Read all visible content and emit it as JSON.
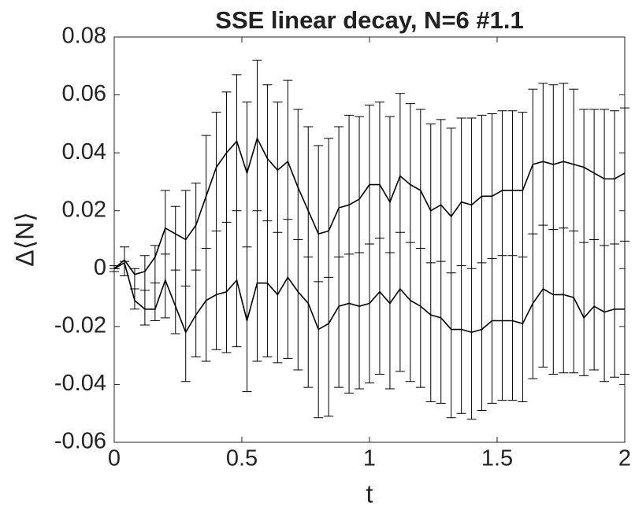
{
  "chart_data": {
    "type": "errorbar",
    "title": "SSE linear decay, N=6 #1.1",
    "xlabel": "t",
    "ylabel": "Δ⟨N⟩",
    "x": [
      0,
      0.04,
      0.08,
      0.12,
      0.16,
      0.2,
      0.24,
      0.28,
      0.32,
      0.36,
      0.4,
      0.44,
      0.48,
      0.52,
      0.56,
      0.6,
      0.64,
      0.68,
      0.72,
      0.76,
      0.8,
      0.84,
      0.88,
      0.92,
      0.96,
      1,
      1.04,
      1.08,
      1.12,
      1.16,
      1.2,
      1.24,
      1.28,
      1.32,
      1.36,
      1.4,
      1.44,
      1.48,
      1.52,
      1.56,
      1.6,
      1.64,
      1.68,
      1.72,
      1.76,
      1.8,
      1.84,
      1.88,
      1.92,
      1.96,
      2
    ],
    "series": [
      {
        "color": "#000000",
        "values": [
          0,
          0.0025,
          -0.007,
          -0.0075,
          -0.005,
          0.005,
          -0.0005,
          -0.006,
          -0.0005,
          0.007,
          0.013,
          0.016,
          0.02,
          0.0075,
          0.02,
          0.0165,
          0.0125,
          0.017,
          0.01,
          0.004,
          -0.0045,
          -0.003,
          0.004,
          0.005,
          0.0055,
          0.0085,
          0.0105,
          0.0055,
          0.0125,
          0.009,
          0.007,
          0.002,
          0.0025,
          -0.0015,
          0.001,
          0,
          0.002,
          0.0035,
          0.0045,
          0.0045,
          0.004,
          0.012,
          0.015,
          0.0135,
          0.014,
          0.013,
          0.009,
          0.01,
          0.008,
          0.0085,
          0.0095
        ],
        "errors": [
          0.001,
          0.005,
          0.007,
          0.012,
          0.013,
          0.022,
          0.022,
          0.033,
          0.03,
          0.039,
          0.041,
          0.045,
          0.047,
          0.05,
          0.052,
          0.047,
          0.045,
          0.048,
          0.045,
          0.045,
          0.047,
          0.048,
          0.045,
          0.048,
          0.047,
          0.048,
          0.047,
          0.047,
          0.048,
          0.048,
          0.048,
          0.048,
          0.049,
          0.05,
          0.051,
          0.052,
          0.051,
          0.05,
          0.05,
          0.05,
          0.05,
          0.05,
          0.049,
          0.05,
          0.05,
          0.049,
          0.046,
          0.045,
          0.047,
          0.046,
          0.046
        ]
      },
      {
        "color": "#000000",
        "values": [
          0,
          0.003,
          -0.002,
          -0.001,
          0.004,
          0.014,
          0.012,
          0.01,
          0.015,
          0.025,
          0.035,
          0.04,
          0.044,
          0.033,
          0.045,
          0.038,
          0.034,
          0.037,
          0.028,
          0.02,
          0.012,
          0.013,
          0.021,
          0.022,
          0.024,
          0.029,
          0.029,
          0.023,
          0.032,
          0.029,
          0.027,
          0.02,
          0.022,
          0.018,
          0.023,
          0.022,
          0.025,
          0.025,
          0.027,
          0.027,
          0.027,
          0.036,
          0.037,
          0.036,
          0.037,
          0.036,
          0.035,
          0.033,
          0.031,
          0.031,
          0.033
        ]
      },
      {
        "color": "#000000",
        "values": [
          0,
          0.002,
          -0.011,
          -0.014,
          -0.014,
          -0.004,
          -0.013,
          -0.022,
          -0.016,
          -0.011,
          -0.009,
          -0.008,
          -0.004,
          -0.018,
          -0.005,
          -0.005,
          -0.009,
          -0.003,
          -0.008,
          -0.012,
          -0.021,
          -0.019,
          -0.013,
          -0.012,
          -0.013,
          -0.012,
          -0.008,
          -0.012,
          -0.007,
          -0.011,
          -0.013,
          -0.016,
          -0.017,
          -0.021,
          -0.021,
          -0.022,
          -0.021,
          -0.018,
          -0.018,
          -0.018,
          -0.019,
          -0.012,
          -0.007,
          -0.009,
          -0.009,
          -0.01,
          -0.017,
          -0.013,
          -0.015,
          -0.014,
          -0.014
        ]
      }
    ],
    "xlim": [
      0,
      2
    ],
    "xticks": [
      0,
      0.5,
      1,
      1.5,
      2
    ],
    "ylim": [
      -0.06,
      0.08
    ],
    "yticks": [
      -0.06,
      -0.04,
      -0.02,
      0,
      0.02,
      0.04,
      0.06,
      0.08
    ]
  }
}
